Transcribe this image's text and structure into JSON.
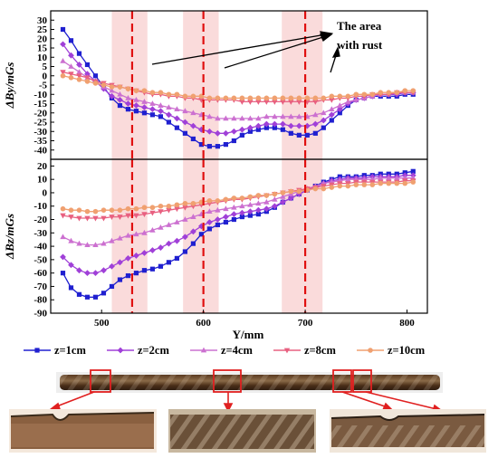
{
  "chart_data": [
    {
      "type": "line",
      "ylabel": "ΔBy/mGs",
      "xlabel": "",
      "xlim": [
        450,
        820
      ],
      "ylim": [
        -45,
        35
      ],
      "yticks": [
        30,
        25,
        20,
        15,
        10,
        5,
        0,
        -5,
        -10,
        -15,
        -20,
        -25,
        -30,
        -35,
        -40
      ],
      "highlight_bands": [
        [
          510,
          545
        ],
        [
          580,
          615
        ],
        [
          677,
          717
        ]
      ],
      "dashed_lines": [
        530,
        600,
        700
      ],
      "annotation": [
        "The area",
        "with rust"
      ],
      "x": [
        462,
        470,
        478,
        486,
        494,
        502,
        510,
        518,
        526,
        534,
        542,
        550,
        558,
        566,
        574,
        582,
        590,
        598,
        606,
        614,
        622,
        630,
        638,
        646,
        654,
        662,
        670,
        678,
        686,
        694,
        702,
        710,
        718,
        726,
        734,
        742,
        750,
        758,
        766,
        774,
        782,
        790,
        798,
        806
      ],
      "series": [
        {
          "name": "z=1cm",
          "color": "#2020d0",
          "marker": "square",
          "values": [
            25,
            19,
            12,
            6,
            0,
            -6,
            -12,
            -16,
            -18,
            -19,
            -20,
            -21,
            -22,
            -25,
            -28,
            -31,
            -34,
            -37,
            -38,
            -38,
            -37,
            -35,
            -32,
            -30,
            -29,
            -28,
            -28,
            -29,
            -31,
            -32,
            -32,
            -31,
            -28,
            -24,
            -20,
            -16,
            -13,
            -12,
            -11,
            -11,
            -11,
            -11,
            -10,
            -10
          ]
        },
        {
          "name": "z=2cm",
          "color": "#a040d8",
          "marker": "diamond",
          "values": [
            17,
            11,
            6,
            1,
            -3,
            -7,
            -11,
            -13,
            -15,
            -16,
            -17,
            -18,
            -19,
            -21,
            -23,
            -25,
            -27,
            -29,
            -30,
            -31,
            -31,
            -30,
            -29,
            -28,
            -27,
            -26,
            -26,
            -26,
            -27,
            -27,
            -27,
            -26,
            -24,
            -21,
            -18,
            -15,
            -13,
            -12,
            -11,
            -10,
            -10,
            -10,
            -9,
            -9
          ]
        },
        {
          "name": "z=4cm",
          "color": "#cc70d0",
          "marker": "triangle",
          "values": [
            8,
            5,
            2,
            -1,
            -3,
            -6,
            -8,
            -10,
            -12,
            -13,
            -14,
            -15,
            -16,
            -17,
            -18,
            -19,
            -20,
            -21,
            -22,
            -23,
            -23,
            -23,
            -23,
            -23,
            -23,
            -22,
            -22,
            -22,
            -22,
            -22,
            -22,
            -21,
            -20,
            -18,
            -16,
            -14,
            -13,
            -12,
            -11,
            -10,
            -10,
            -9,
            -9,
            -9
          ]
        },
        {
          "name": "z=8cm",
          "color": "#e86080",
          "marker": "tri-down",
          "values": [
            2,
            1,
            0,
            -1,
            -3,
            -4,
            -5,
            -6,
            -7,
            -8,
            -9,
            -10,
            -10,
            -11,
            -11,
            -12,
            -12,
            -13,
            -13,
            -13,
            -13,
            -13,
            -14,
            -14,
            -14,
            -14,
            -14,
            -14,
            -14,
            -14,
            -14,
            -14,
            -13,
            -13,
            -12,
            -12,
            -11,
            -11,
            -10,
            -10,
            -10,
            -9,
            -9,
            -9
          ]
        },
        {
          "name": "z=10cm",
          "color": "#f0a070",
          "marker": "dot",
          "values": [
            0,
            -1,
            -2,
            -3,
            -4,
            -5,
            -6,
            -6,
            -7,
            -8,
            -8,
            -9,
            -9,
            -10,
            -10,
            -11,
            -11,
            -11,
            -12,
            -12,
            -12,
            -12,
            -12,
            -12,
            -12,
            -12,
            -12,
            -12,
            -12,
            -12,
            -12,
            -12,
            -12,
            -11,
            -11,
            -11,
            -10,
            -10,
            -10,
            -9,
            -9,
            -9,
            -8,
            -8
          ]
        }
      ]
    },
    {
      "type": "line",
      "ylabel": "ΔBz/mGs",
      "xlabel": "Y/mm",
      "xlim": [
        450,
        820
      ],
      "ylim": [
        -90,
        25
      ],
      "xticks": [
        500,
        600,
        700,
        800
      ],
      "yticks": [
        20,
        10,
        0,
        -10,
        -20,
        -30,
        -40,
        -50,
        -60,
        -70,
        -80,
        -90
      ],
      "highlight_bands": [
        [
          510,
          545
        ],
        [
          580,
          615
        ],
        [
          677,
          717
        ]
      ],
      "dashed_lines": [
        530,
        600,
        700
      ],
      "x": [
        462,
        470,
        478,
        486,
        494,
        502,
        510,
        518,
        526,
        534,
        542,
        550,
        558,
        566,
        574,
        582,
        590,
        598,
        606,
        614,
        622,
        630,
        638,
        646,
        654,
        662,
        670,
        678,
        686,
        694,
        702,
        710,
        718,
        726,
        734,
        742,
        750,
        758,
        766,
        774,
        782,
        790,
        798,
        806
      ],
      "series": [
        {
          "name": "z=1cm",
          "color": "#2020d0",
          "marker": "square",
          "values": [
            -60,
            -71,
            -76,
            -78,
            -78,
            -75,
            -70,
            -65,
            -62,
            -60,
            -58,
            -57,
            -55,
            -52,
            -49,
            -44,
            -38,
            -31,
            -27,
            -24,
            -22,
            -20,
            -18,
            -17,
            -16,
            -14,
            -11,
            -7,
            -4,
            -1,
            2,
            5,
            8,
            10,
            12,
            12,
            12,
            13,
            13,
            14,
            14,
            14,
            15,
            16
          ]
        },
        {
          "name": "z=2cm",
          "color": "#a040d8",
          "marker": "diamond",
          "values": [
            -48,
            -54,
            -58,
            -60,
            -60,
            -58,
            -55,
            -52,
            -49,
            -47,
            -45,
            -43,
            -41,
            -38,
            -36,
            -33,
            -29,
            -25,
            -22,
            -20,
            -18,
            -16,
            -15,
            -14,
            -13,
            -12,
            -10,
            -7,
            -4,
            -1,
            2,
            4,
            7,
            9,
            10,
            11,
            11,
            11,
            12,
            12,
            12,
            12,
            13,
            13
          ]
        },
        {
          "name": "z=4cm",
          "color": "#cc70d0",
          "marker": "triangle",
          "values": [
            -33,
            -36,
            -38,
            -39,
            -39,
            -38,
            -36,
            -34,
            -32,
            -31,
            -30,
            -28,
            -26,
            -24,
            -22,
            -20,
            -18,
            -16,
            -14,
            -13,
            -12,
            -11,
            -10,
            -9,
            -8,
            -7,
            -5,
            -3,
            -1,
            1,
            3,
            5,
            7,
            8,
            9,
            10,
            10,
            10,
            10,
            11,
            11,
            11,
            11,
            11
          ]
        },
        {
          "name": "z=8cm",
          "color": "#e86080",
          "marker": "tri-down",
          "values": [
            -17,
            -18,
            -19,
            -19,
            -19,
            -19,
            -18,
            -18,
            -17,
            -17,
            -16,
            -15,
            -14,
            -13,
            -12,
            -11,
            -10,
            -9,
            -8,
            -7,
            -6,
            -5,
            -5,
            -4,
            -3,
            -2,
            -1,
            0,
            1,
            2,
            3,
            4,
            5,
            6,
            7,
            7,
            8,
            8,
            8,
            8,
            8,
            8,
            9,
            9
          ]
        },
        {
          "name": "z=10cm",
          "color": "#f0a070",
          "marker": "dot",
          "values": [
            -12,
            -13,
            -13,
            -14,
            -14,
            -13,
            -13,
            -13,
            -12,
            -12,
            -11,
            -11,
            -10,
            -10,
            -9,
            -8,
            -8,
            -7,
            -6,
            -6,
            -5,
            -4,
            -4,
            -3,
            -2,
            -2,
            -1,
            0,
            1,
            1,
            2,
            3,
            3,
            4,
            5,
            5,
            6,
            6,
            6,
            7,
            7,
            7,
            7,
            8
          ]
        }
      ]
    }
  ],
  "legend": [
    "z=1cm",
    "z=2cm",
    "z=4cm",
    "z=8cm",
    "z=10cm"
  ]
}
